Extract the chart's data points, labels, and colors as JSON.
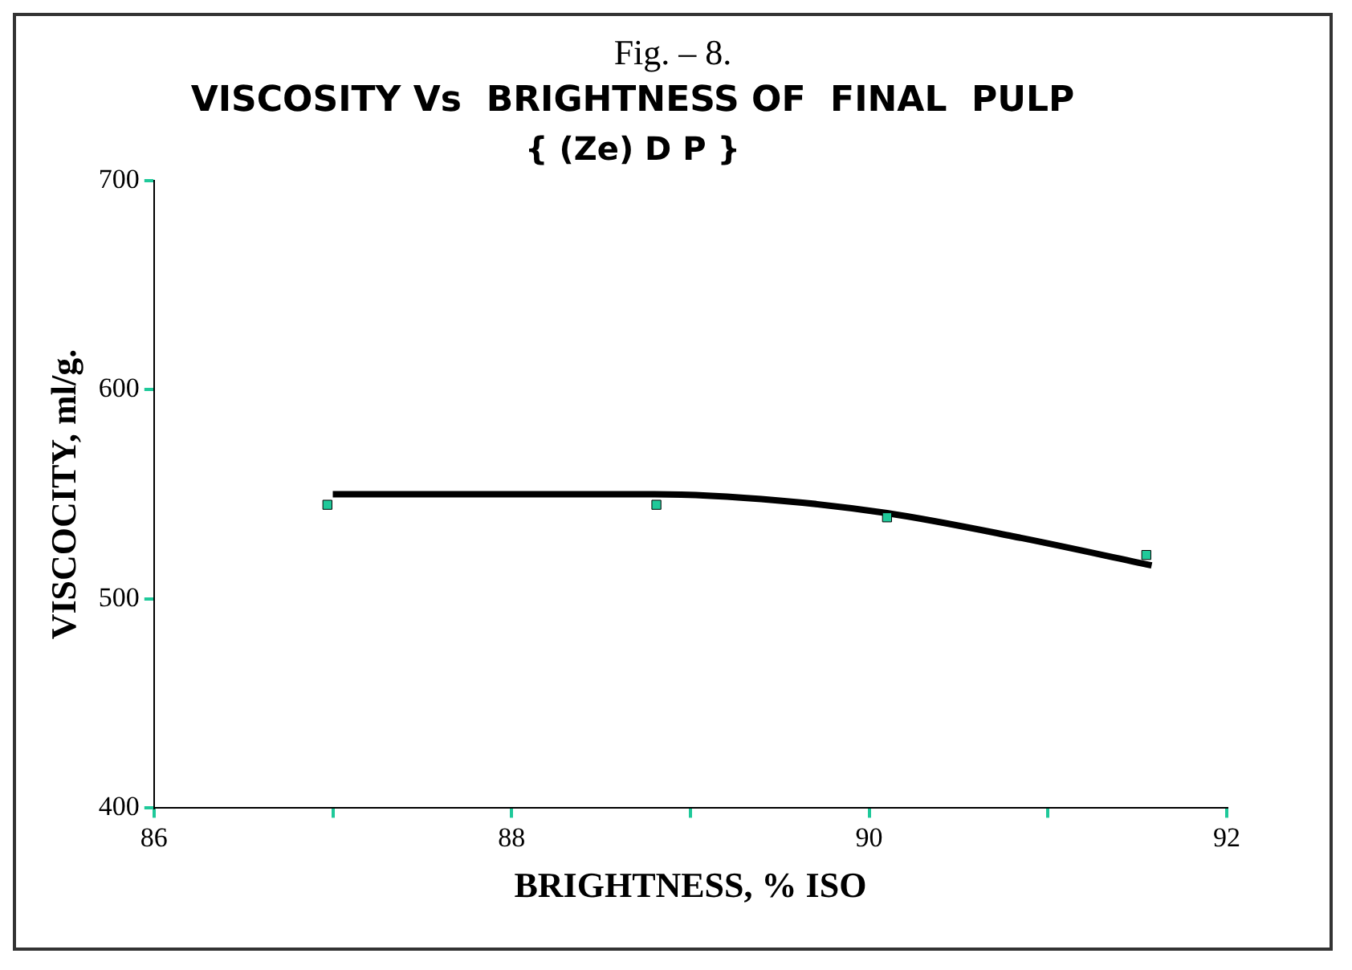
{
  "chart_data": {
    "type": "scatter",
    "title": "VISCOSITY Vs  BRIGHTNESS OF  FINAL  PULP",
    "subtitle": "{ (Ze) D P }",
    "annotations": [
      "Fig. – 8."
    ],
    "xlabel": "BRIGHTNESS, % ISO",
    "ylabel": "VISCOCITY, ml/g.",
    "xlim": [
      86,
      92
    ],
    "xticks": [
      86,
      {
        "value": 87,
        "label": null
      },
      88,
      {
        "value": 89,
        "label": null
      },
      90,
      {
        "value": 91,
        "label": null
      },
      92
    ],
    "ylim": [
      400,
      700
    ],
    "yticks": [
      400,
      500,
      600,
      700
    ],
    "grid": false,
    "legend": false,
    "marker": "square",
    "series": [
      {
        "color": "#1fc99a",
        "x": [
          86.97,
          88.81,
          90.1,
          91.55
        ],
        "values": [
          545,
          545,
          539,
          521
        ]
      },
      {
        "type": "line",
        "color": "#000000",
        "marker": "none",
        "line_style": "solid",
        "x": [
          87,
          88.8,
          89.5,
          90.1,
          90.8,
          91.58
        ],
        "values": [
          550,
          550,
          547,
          541,
          530,
          516
        ]
      }
    ]
  }
}
